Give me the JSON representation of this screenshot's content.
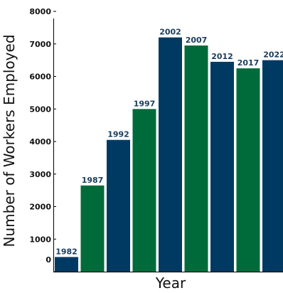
{
  "chart_data": {
    "type": "bar",
    "title": "",
    "xlabel": "Year",
    "ylabel": "Number of Workers Employed",
    "ylim": [
      0,
      8000
    ],
    "yticks": [
      0,
      1000,
      2000,
      3000,
      4000,
      5000,
      6000,
      7000,
      8000
    ],
    "categories": [
      "1982",
      "1987",
      "1992",
      "1997",
      "2002",
      "2007",
      "2012",
      "2017",
      "2022"
    ],
    "values": [
      450,
      2650,
      4050,
      5000,
      7200,
      6950,
      6450,
      6250,
      6500
    ],
    "colors": [
      "#003a63",
      "#006b3a",
      "#003a63",
      "#006b3a",
      "#003a63",
      "#006b3a",
      "#003a63",
      "#006b3a",
      "#003a63"
    ],
    "label_color": "#1a3d5c",
    "grid": false,
    "legend": "none"
  }
}
